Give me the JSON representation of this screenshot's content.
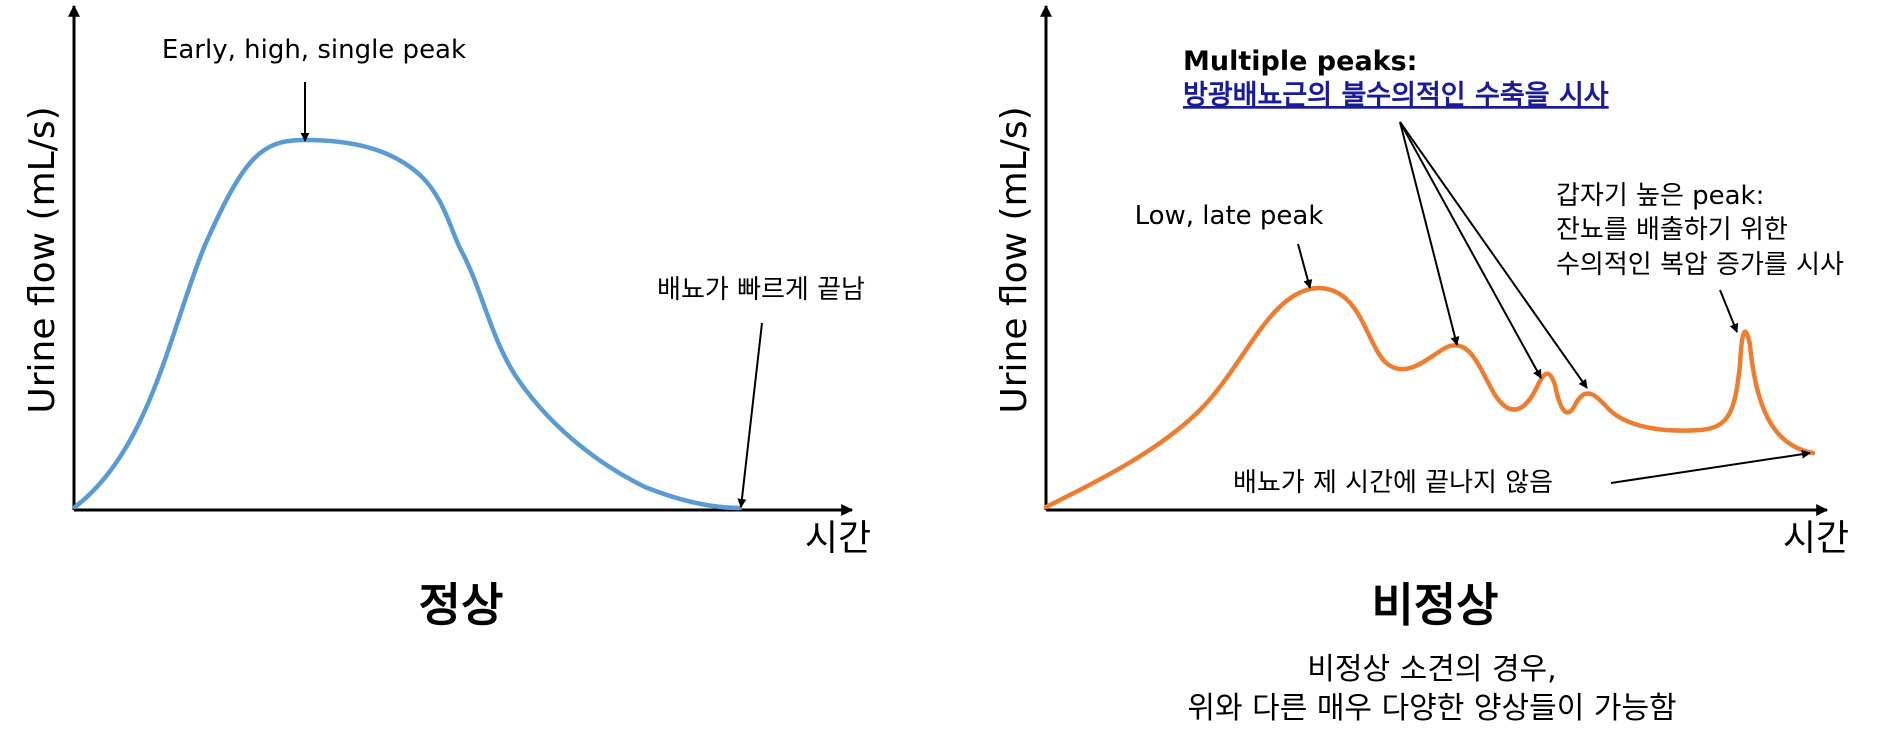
{
  "normal": {
    "y_axis_label": "Urine flow (mL/s)",
    "x_axis_label": "시간",
    "annotation_peak": "Early, high, single peak",
    "annotation_end": "배뇨가 빠르게 끝남",
    "panel_title": "정상",
    "curve_color": "#5b9bd5"
  },
  "abnormal": {
    "y_axis_label": "Urine flow (mL/s)",
    "x_axis_label": "시간",
    "multiple_peaks_title": "Multiple peaks:",
    "multiple_peaks_desc": "방광배뇨근의 불수의적인 수축을 시사",
    "annotation_low_late": "Low, late peak",
    "sudden_peak_lines": [
      "갑자기 높은 peak:",
      "잔뇨를 배출하기 위한",
      "수의적인 복압 증가를 시사"
    ],
    "annotation_end": "배뇨가 제 시간에 끝나지 않음",
    "panel_title": "비정상",
    "caption_lines": [
      "비정상 소견의 경우,",
      "위와 다른 매우 다양한 양상들이 가능함"
    ],
    "curve_color": "#ed7d31",
    "link_color": "#1a1a9c"
  }
}
